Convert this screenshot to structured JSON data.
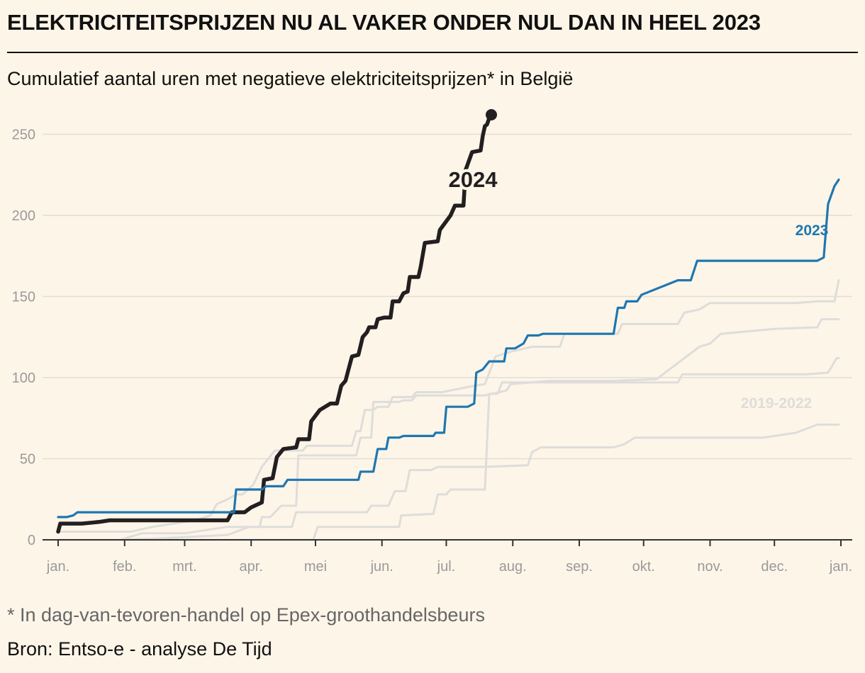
{
  "header": {
    "title": "ELEKTRICITEITSPRIJZEN NU AL VAKER ONDER NUL DAN IN HEEL 2023",
    "subtitle": "Cumulatief aantal uren met negatieve elektriciteitsprijzen* in België"
  },
  "footer": {
    "footnote": "* In dag-van-tevoren-handel op Epex-groothandelsbeurs",
    "source": "Bron: Entso-e - analyse De Tijd"
  },
  "chart_data": {
    "type": "line",
    "title": "ELEKTRICITEITSPRIJZEN NU AL VAKER ONDER NUL DAN IN HEEL 2023",
    "subtitle": "Cumulatief aantal uren met negatieve elektriciteitsprijzen* in België",
    "xlabel": "",
    "ylabel": "",
    "x_unit": "day of year",
    "xlim": [
      1,
      366
    ],
    "ylim": [
      0,
      265
    ],
    "y_ticks": [
      0,
      50,
      100,
      150,
      200,
      250
    ],
    "x_ticks": [
      {
        "label": "jan.",
        "day": 1
      },
      {
        "label": "feb.",
        "day": 32
      },
      {
        "label": "mrt.",
        "day": 60
      },
      {
        "label": "apr.",
        "day": 91
      },
      {
        "label": "mei",
        "day": 121
      },
      {
        "label": "jun.",
        "day": 152
      },
      {
        "label": "jul.",
        "day": 182
      },
      {
        "label": "aug.",
        "day": 213
      },
      {
        "label": "sep.",
        "day": 244
      },
      {
        "label": "okt.",
        "day": 274
      },
      {
        "label": "nov.",
        "day": 305
      },
      {
        "label": "dec.",
        "day": 335
      },
      {
        "label": "jan.",
        "day": 366
      }
    ],
    "grid": true,
    "colors": {
      "y2024": "#231f20",
      "y2023": "#1f77b0",
      "historic": "#dedddb",
      "grid": "#e2ddd3",
      "axis": "#333333"
    },
    "series": [
      {
        "name": "2024",
        "color": "#231f20",
        "width": 5.5,
        "end_marker": true,
        "points": [
          [
            1,
            5
          ],
          [
            2,
            10
          ],
          [
            12,
            10
          ],
          [
            20,
            11
          ],
          [
            25,
            12
          ],
          [
            80,
            12
          ],
          [
            82,
            17
          ],
          [
            88,
            17
          ],
          [
            91,
            20
          ],
          [
            96,
            23
          ],
          [
            97,
            37
          ],
          [
            101,
            38
          ],
          [
            103,
            51
          ],
          [
            106,
            56
          ],
          [
            112,
            57
          ],
          [
            113,
            62
          ],
          [
            118,
            62
          ],
          [
            119,
            73
          ],
          [
            123,
            80
          ],
          [
            128,
            84
          ],
          [
            131,
            84
          ],
          [
            133,
            95
          ],
          [
            135,
            98
          ],
          [
            136,
            103
          ],
          [
            138,
            113
          ],
          [
            141,
            114
          ],
          [
            143,
            125
          ],
          [
            145,
            128
          ],
          [
            146,
            131
          ],
          [
            149,
            131
          ],
          [
            150,
            136
          ],
          [
            153,
            137
          ],
          [
            156,
            137
          ],
          [
            157,
            147
          ],
          [
            160,
            147
          ],
          [
            162,
            152
          ],
          [
            164,
            153
          ],
          [
            165,
            162
          ],
          [
            169,
            162
          ],
          [
            170,
            168
          ],
          [
            172,
            183
          ],
          [
            178,
            184
          ],
          [
            179,
            191
          ],
          [
            184,
            200
          ],
          [
            186,
            206
          ],
          [
            190,
            206
          ],
          [
            191,
            228
          ],
          [
            194,
            239
          ],
          [
            198,
            240
          ],
          [
            199,
            249
          ],
          [
            200,
            255
          ],
          [
            201,
            256
          ],
          [
            202,
            260
          ],
          [
            203,
            262
          ]
        ]
      },
      {
        "name": "2023",
        "color": "#1f77b0",
        "width": 3.2,
        "label_value": true,
        "points": [
          [
            1,
            14
          ],
          [
            5,
            14
          ],
          [
            8,
            15
          ],
          [
            10,
            17
          ],
          [
            83,
            17
          ],
          [
            84,
            31
          ],
          [
            96,
            31
          ],
          [
            98,
            33
          ],
          [
            106,
            33
          ],
          [
            108,
            37
          ],
          [
            141,
            37
          ],
          [
            142,
            42
          ],
          [
            148,
            42
          ],
          [
            150,
            56
          ],
          [
            154,
            56
          ],
          [
            155,
            63
          ],
          [
            160,
            63
          ],
          [
            162,
            64
          ],
          [
            176,
            64
          ],
          [
            177,
            66
          ],
          [
            181,
            66
          ],
          [
            182,
            82
          ],
          [
            192,
            82
          ],
          [
            195,
            84
          ],
          [
            196,
            103
          ],
          [
            199,
            105
          ],
          [
            202,
            110
          ],
          [
            209,
            110
          ],
          [
            210,
            118
          ],
          [
            214,
            118
          ],
          [
            218,
            121
          ],
          [
            220,
            126
          ],
          [
            225,
            126
          ],
          [
            227,
            127
          ],
          [
            260,
            127
          ],
          [
            262,
            143
          ],
          [
            265,
            143
          ],
          [
            266,
            147
          ],
          [
            271,
            147
          ],
          [
            273,
            151
          ],
          [
            290,
            160
          ],
          [
            296,
            160
          ],
          [
            299,
            172
          ],
          [
            355,
            172
          ],
          [
            358,
            174
          ],
          [
            360,
            207
          ],
          [
            363,
            218
          ],
          [
            365,
            222
          ]
        ]
      },
      {
        "name": "",
        "color": "#dedddb",
        "width": 3,
        "points": [
          [
            1,
            0
          ],
          [
            120,
            0
          ],
          [
            122,
            8
          ],
          [
            160,
            8
          ],
          [
            161,
            15
          ],
          [
            176,
            16
          ],
          [
            178,
            28
          ],
          [
            182,
            28
          ],
          [
            184,
            31
          ],
          [
            200,
            31
          ],
          [
            202,
            90
          ],
          [
            206,
            90
          ],
          [
            208,
            97
          ],
          [
            290,
            97
          ],
          [
            292,
            102
          ],
          [
            350,
            102
          ],
          [
            360,
            103
          ],
          [
            364,
            112
          ],
          [
            365,
            112
          ]
        ]
      },
      {
        "name": "",
        "color": "#dedddb",
        "width": 3,
        "points": [
          [
            1,
            0
          ],
          [
            30,
            0
          ],
          [
            50,
            1
          ],
          [
            80,
            3
          ],
          [
            90,
            8
          ],
          [
            110,
            8
          ],
          [
            112,
            17
          ],
          [
            145,
            17
          ],
          [
            147,
            21
          ],
          [
            155,
            21
          ],
          [
            158,
            30
          ],
          [
            163,
            30
          ],
          [
            165,
            43
          ],
          [
            175,
            43
          ],
          [
            178,
            45
          ],
          [
            200,
            45
          ],
          [
            220,
            46
          ],
          [
            222,
            54
          ],
          [
            226,
            57
          ],
          [
            260,
            57
          ],
          [
            265,
            59
          ],
          [
            270,
            63
          ],
          [
            330,
            63
          ],
          [
            345,
            66
          ],
          [
            355,
            71
          ],
          [
            365,
            71
          ]
        ]
      },
      {
        "name": "",
        "color": "#dedddb",
        "width": 3,
        "points": [
          [
            1,
            0
          ],
          [
            30,
            0
          ],
          [
            40,
            4
          ],
          [
            60,
            4
          ],
          [
            80,
            8
          ],
          [
            95,
            8
          ],
          [
            96,
            14
          ],
          [
            100,
            14
          ],
          [
            105,
            21
          ],
          [
            112,
            21
          ],
          [
            113,
            52
          ],
          [
            140,
            52
          ],
          [
            142,
            63
          ],
          [
            147,
            63
          ],
          [
            148,
            85
          ],
          [
            160,
            85
          ],
          [
            162,
            86
          ],
          [
            166,
            86
          ],
          [
            168,
            89
          ],
          [
            200,
            89
          ],
          [
            210,
            92
          ],
          [
            212,
            96
          ],
          [
            230,
            98
          ],
          [
            260,
            98
          ],
          [
            280,
            99
          ],
          [
            300,
            119
          ],
          [
            305,
            121
          ],
          [
            310,
            127
          ],
          [
            335,
            130
          ],
          [
            355,
            131
          ],
          [
            357,
            136
          ],
          [
            365,
            136
          ]
        ]
      },
      {
        "name": "",
        "color": "#dedddb",
        "width": 3,
        "points": [
          [
            1,
            5
          ],
          [
            35,
            5
          ],
          [
            45,
            8
          ],
          [
            65,
            12
          ],
          [
            72,
            15
          ],
          [
            75,
            22
          ],
          [
            80,
            25
          ],
          [
            84,
            28
          ],
          [
            87,
            28
          ],
          [
            92,
            34
          ],
          [
            96,
            45
          ],
          [
            102,
            55
          ],
          [
            115,
            55
          ],
          [
            117,
            58
          ],
          [
            138,
            58
          ],
          [
            140,
            67
          ],
          [
            142,
            67
          ],
          [
            144,
            80
          ],
          [
            148,
            80
          ],
          [
            150,
            82
          ],
          [
            155,
            82
          ],
          [
            157,
            88
          ],
          [
            166,
            88
          ],
          [
            168,
            91
          ],
          [
            180,
            91
          ],
          [
            195,
            95
          ],
          [
            200,
            96
          ],
          [
            205,
            113
          ],
          [
            212,
            116
          ],
          [
            222,
            119
          ],
          [
            235,
            119
          ],
          [
            237,
            127
          ],
          [
            262,
            127
          ],
          [
            264,
            133
          ],
          [
            290,
            133
          ],
          [
            293,
            140
          ],
          [
            300,
            142
          ],
          [
            305,
            146
          ],
          [
            345,
            146
          ],
          [
            355,
            147
          ],
          [
            363,
            147
          ],
          [
            365,
            160
          ]
        ]
      }
    ],
    "annotations": [
      {
        "text": "2024",
        "series": "2024"
      },
      {
        "text": "2023",
        "series": "2023"
      },
      {
        "text": "2019-2022",
        "series": "historic"
      }
    ]
  }
}
